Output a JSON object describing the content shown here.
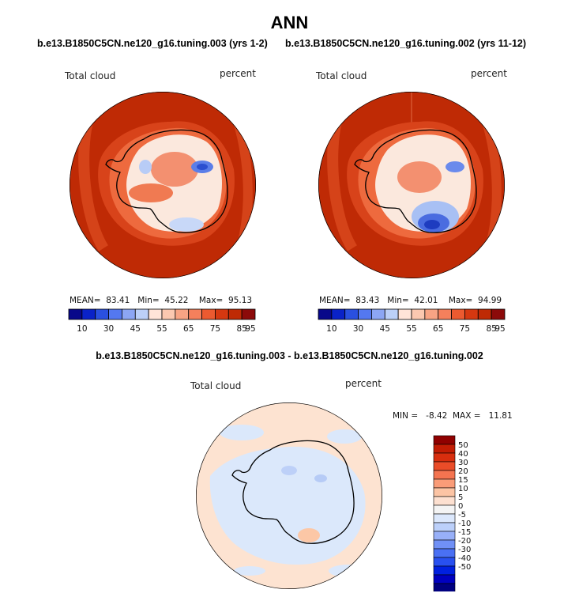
{
  "title": "ANN",
  "colors": {
    "ocean": "#bf2a05",
    "abs_scale": [
      "#08088a",
      "#0a22c8",
      "#2a50e0",
      "#5478f0",
      "#8ca6f4",
      "#bcd0f8",
      "#ffe4d8",
      "#fbc8b0",
      "#f8a484",
      "#f4805c",
      "#ec5a30",
      "#d63810",
      "#bf2a05",
      "#8c0a0a"
    ],
    "diff_scale": [
      "#000080",
      "#0000c0",
      "#0020e0",
      "#2850f0",
      "#4a70f4",
      "#7090f6",
      "#98b0f8",
      "#bcd0fa",
      "#dce8fc",
      "#f4f4f4",
      "#fde0d0",
      "#fcc4a4",
      "#fa9c78",
      "#f47450",
      "#ea4c28",
      "#d82e0e",
      "#c21c04",
      "#900000"
    ],
    "diff_ocean": "#fde3d1",
    "diff_land": "#dbe8fb"
  },
  "chart_data": [
    {
      "type": "heatmap",
      "title": "b.e13.B1850C5CN.ne120_g16.tuning.003 (yrs 1-2)",
      "field_label": "Total cloud",
      "units": "percent",
      "stats": {
        "mean_label": "MEAN=",
        "mean": "83.41",
        "min_label": "Min=",
        "min": "45.22",
        "max_label": "Max=",
        "max": "95.13"
      },
      "colorbar_ticks": [
        "10",
        "30",
        "45",
        "55",
        "65",
        "75",
        "85",
        "95"
      ]
    },
    {
      "type": "heatmap",
      "title": "b.e13.B1850C5CN.ne120_g16.tuning.002 (yrs 11-12)",
      "field_label": "Total cloud",
      "units": "percent",
      "stats": {
        "mean_label": "MEAN=",
        "mean": "83.43",
        "min_label": "Min=",
        "min": "42.01",
        "max_label": "Max=",
        "max": "94.99"
      },
      "colorbar_ticks": [
        "10",
        "30",
        "45",
        "55",
        "65",
        "75",
        "85",
        "95"
      ]
    },
    {
      "type": "heatmap",
      "title": "b.e13.B1850C5CN.ne120_g16.tuning.003 - b.e13.B1850C5CN.ne120_g16.tuning.002",
      "field_label": "Total cloud",
      "units": "percent",
      "minmax_text": "MIN =   -8.42  MAX =   11.81",
      "colorbar_ticks": [
        "50",
        "40",
        "30",
        "20",
        "15",
        "10",
        "5",
        "0",
        "-5",
        "-10",
        "-15",
        "-20",
        "-30",
        "-40",
        "-50"
      ]
    }
  ]
}
